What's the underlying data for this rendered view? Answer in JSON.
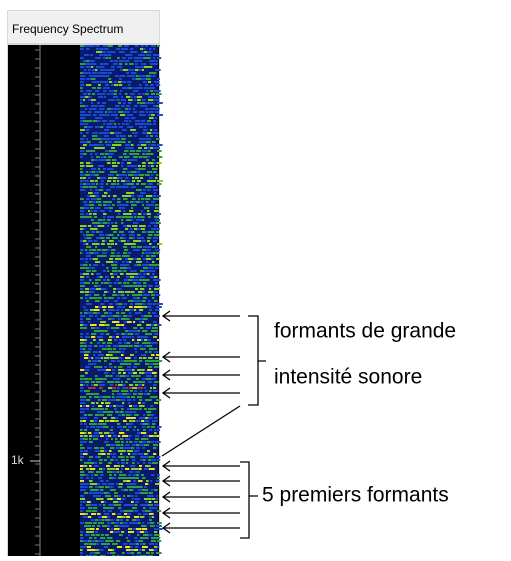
{
  "window": {
    "title": "Frequency Spectrum"
  },
  "axis": {
    "label": "1k"
  },
  "annotations": {
    "loud_formants": [
      "formants de grande",
      "intensité sonore"
    ],
    "first_formants": "5 premiers formants"
  }
}
